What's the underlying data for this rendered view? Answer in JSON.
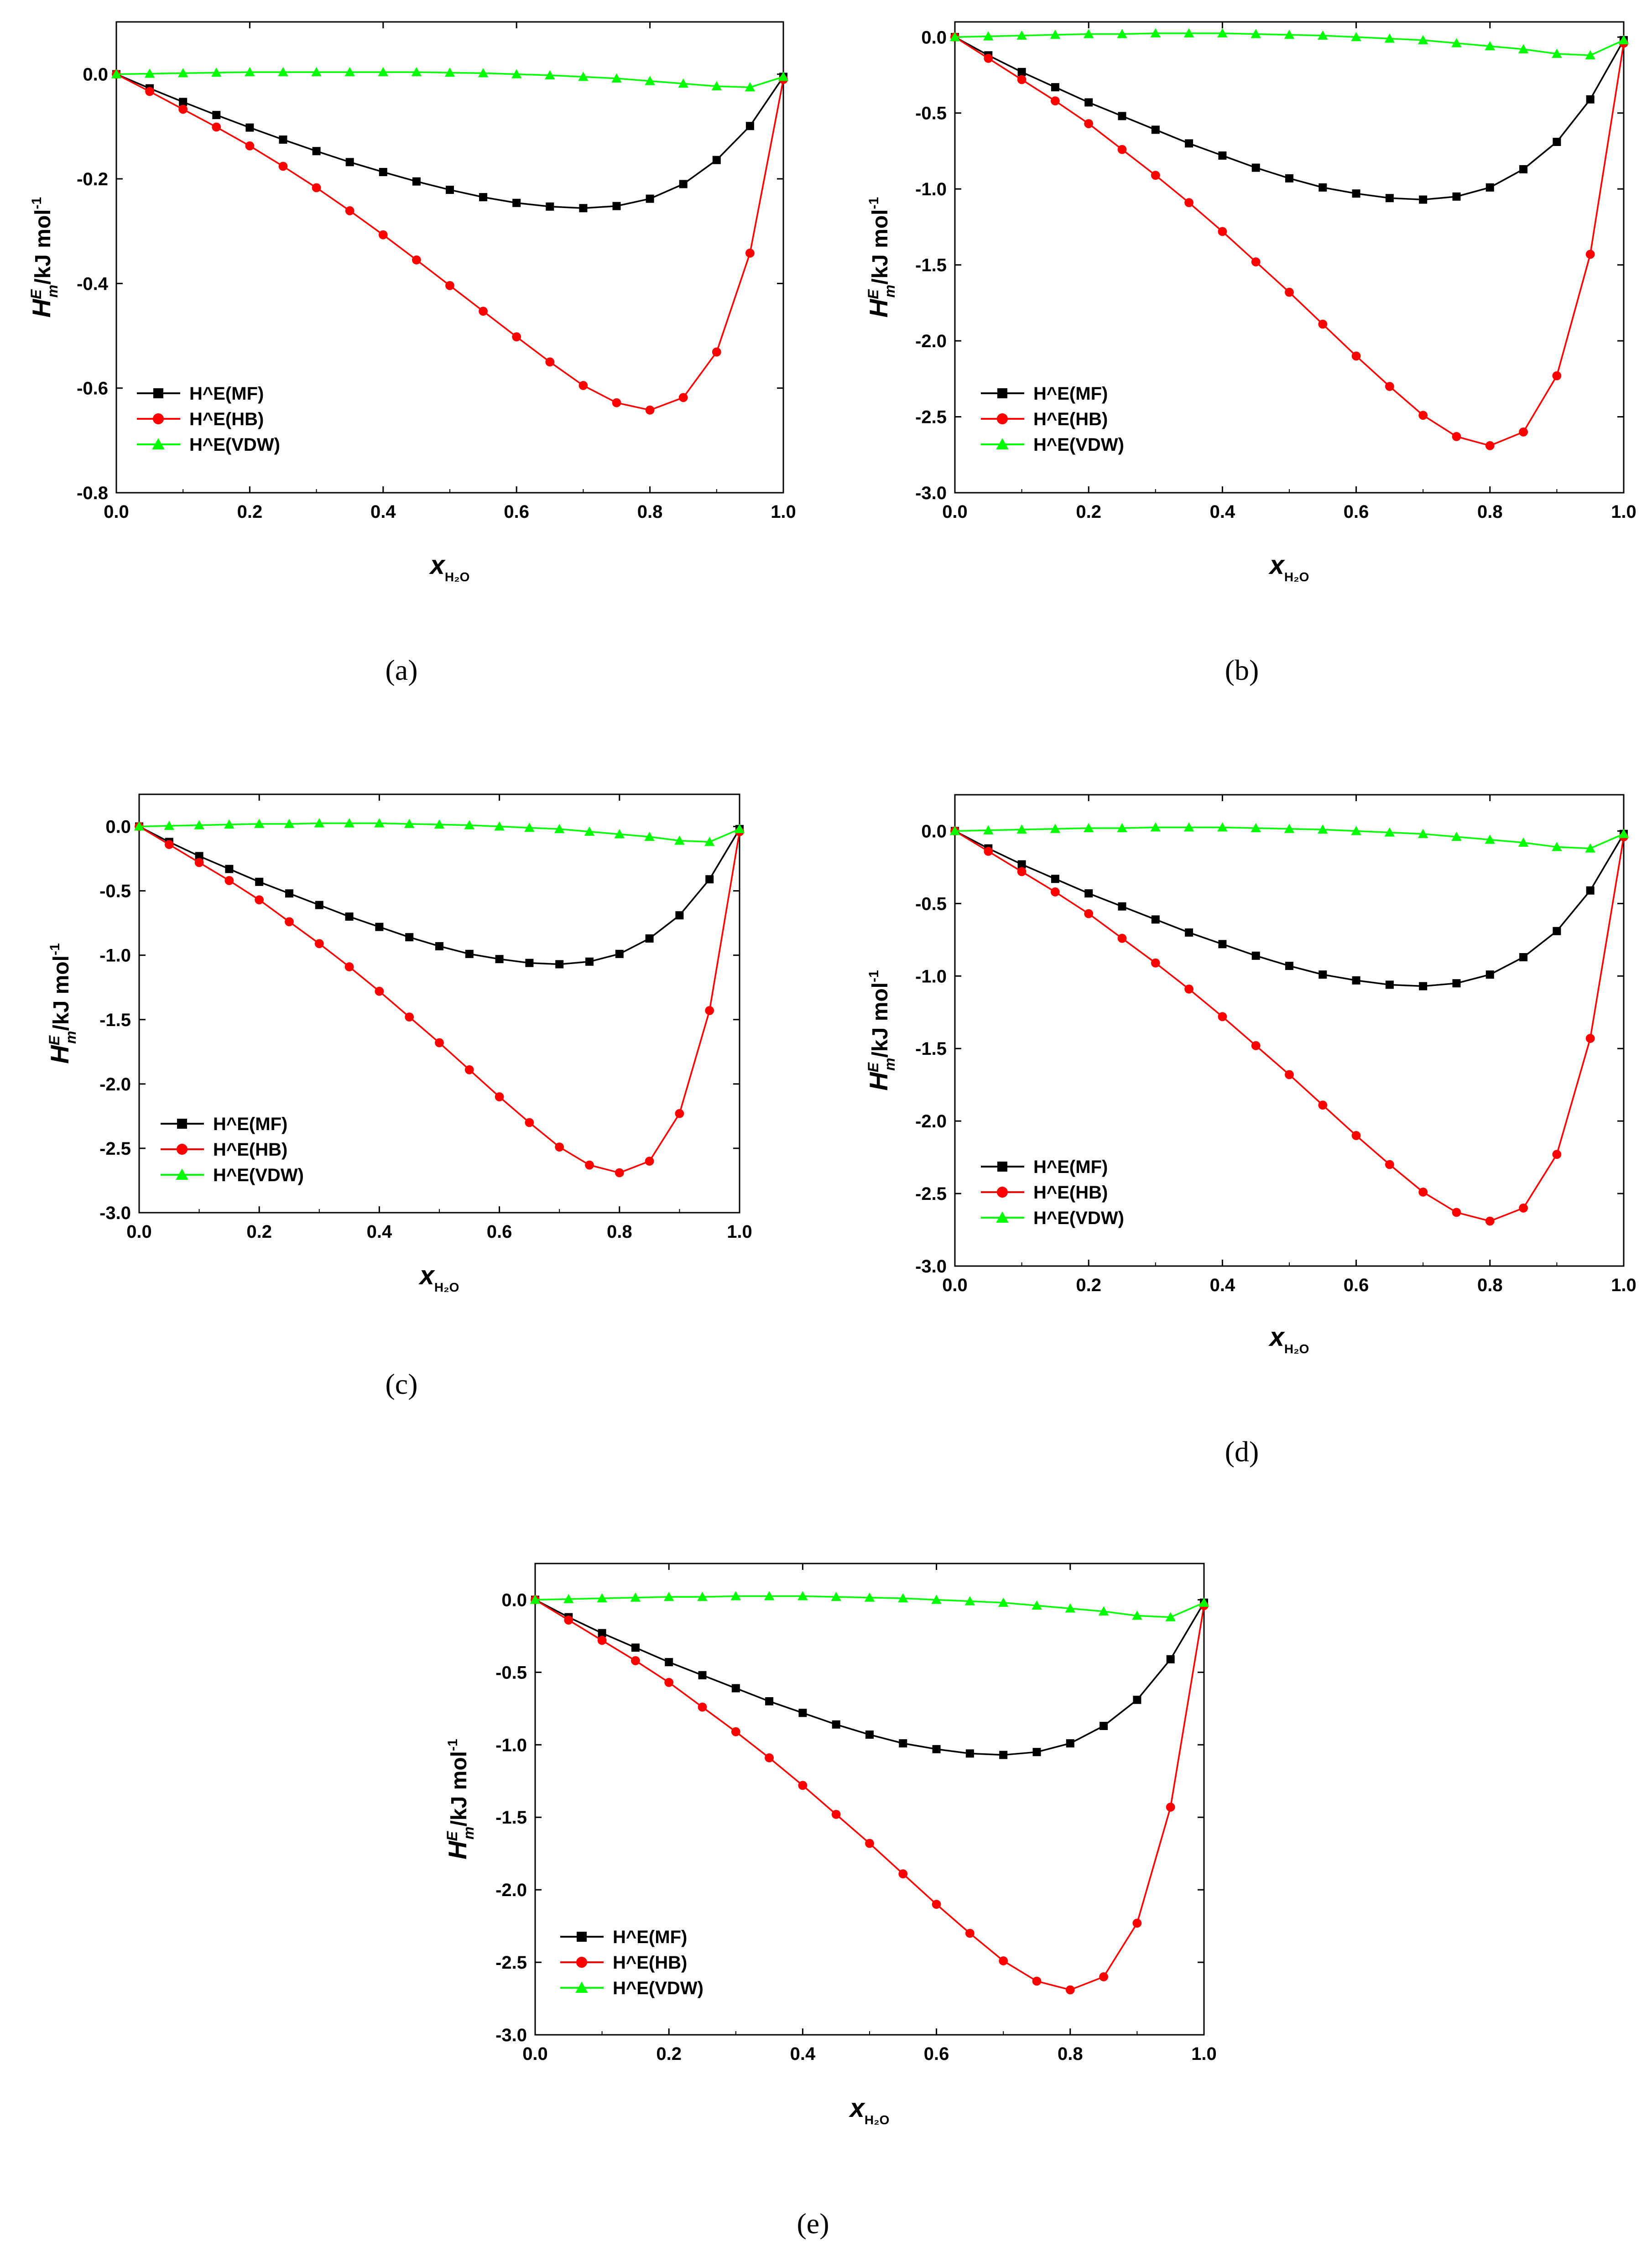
{
  "colors": {
    "MF": "#000000",
    "HB": "#ff0000",
    "VDW": "#00ff00"
  },
  "chart_data": [
    {
      "type": "line",
      "panel": "a",
      "caption": "(a)",
      "title": "",
      "xlabel": "x",
      "xlabel_sub": "H₂O",
      "ylabel": "H",
      "ylabel_sup": "E",
      "ylabel_sub": "m",
      "ylabel_unit": "/kJ mol",
      "ylabel_unit_sup": "-1",
      "xlim": [
        0.0,
        1.0
      ],
      "ylim": [
        -0.8,
        0.1
      ],
      "xticks": [
        "0.0",
        "0.2",
        "0.4",
        "0.6",
        "0.8",
        "1.0"
      ],
      "yticks": [
        "0.0",
        "-0.2",
        "-0.4",
        "-0.6",
        "-0.8"
      ],
      "ytick_values": [
        0.0,
        -0.2,
        -0.4,
        -0.6,
        -0.8
      ],
      "x": [
        0,
        0.05,
        0.1,
        0.15,
        0.2,
        0.25,
        0.3,
        0.35,
        0.4,
        0.45,
        0.5,
        0.55,
        0.6,
        0.65,
        0.7,
        0.75,
        0.8,
        0.85,
        0.9,
        0.95,
        1.0
      ],
      "series": [
        {
          "name": "H^E(MF)",
          "key": "MF",
          "marker": "square",
          "values": [
            0,
            -0.027,
            -0.053,
            -0.078,
            -0.102,
            -0.125,
            -0.147,
            -0.168,
            -0.187,
            -0.205,
            -0.221,
            -0.235,
            -0.246,
            -0.253,
            -0.256,
            -0.252,
            -0.238,
            -0.21,
            -0.164,
            -0.099,
            -0.005
          ]
        },
        {
          "name": "H^E(HB)",
          "key": "HB",
          "marker": "circle",
          "values": [
            0,
            -0.033,
            -0.067,
            -0.101,
            -0.137,
            -0.176,
            -0.217,
            -0.261,
            -0.307,
            -0.355,
            -0.404,
            -0.453,
            -0.502,
            -0.55,
            -0.595,
            -0.628,
            -0.642,
            -0.618,
            -0.531,
            -0.342,
            -0.01
          ]
        },
        {
          "name": "H^E(VDW)",
          "key": "VDW",
          "marker": "triangle",
          "values": [
            0,
            0.001,
            0.002,
            0.003,
            0.004,
            0.004,
            0.004,
            0.004,
            0.004,
            0.004,
            0.003,
            0.002,
            0.0,
            -0.002,
            -0.005,
            -0.008,
            -0.013,
            -0.018,
            -0.023,
            -0.025,
            -0.005
          ]
        }
      ]
    },
    {
      "type": "line",
      "panel": "b",
      "caption": "(b)",
      "title": "",
      "xlabel": "x",
      "xlabel_sub": "H₂O",
      "ylabel": "H",
      "ylabel_sup": "E",
      "ylabel_sub": "m",
      "ylabel_unit": "/kJ mol",
      "ylabel_unit_sup": "-1",
      "xlim": [
        0.0,
        1.0
      ],
      "ylim": [
        -3.0,
        0.1
      ],
      "xticks": [
        "0.0",
        "0.2",
        "0.4",
        "0.6",
        "0.8",
        "1.0"
      ],
      "yticks": [
        "0.0",
        "-0.5",
        "-1.0",
        "-1.5",
        "-2.0",
        "-2.5",
        "-3.0"
      ],
      "ytick_values": [
        0.0,
        -0.5,
        -1.0,
        -1.5,
        -2.0,
        -2.5,
        -3.0
      ],
      "x": [
        0,
        0.05,
        0.1,
        0.15,
        0.2,
        0.25,
        0.3,
        0.35,
        0.4,
        0.45,
        0.5,
        0.55,
        0.6,
        0.65,
        0.7,
        0.75,
        0.8,
        0.85,
        0.9,
        0.95,
        1.0
      ],
      "series": [
        {
          "name": "H^E(MF)",
          "key": "MF",
          "marker": "square",
          "values": [
            0,
            -0.12,
            -0.23,
            -0.33,
            -0.43,
            -0.52,
            -0.61,
            -0.7,
            -0.78,
            -0.86,
            -0.93,
            -0.99,
            -1.03,
            -1.06,
            -1.07,
            -1.05,
            -0.99,
            -0.87,
            -0.69,
            -0.41,
            -0.02
          ]
        },
        {
          "name": "H^E(HB)",
          "key": "HB",
          "marker": "circle",
          "values": [
            0,
            -0.14,
            -0.28,
            -0.42,
            -0.57,
            -0.74,
            -0.91,
            -1.09,
            -1.28,
            -1.48,
            -1.68,
            -1.89,
            -2.1,
            -2.3,
            -2.49,
            -2.63,
            -2.69,
            -2.6,
            -2.23,
            -1.43,
            -0.04
          ]
        },
        {
          "name": "H^E(VDW)",
          "key": "VDW",
          "marker": "triangle",
          "values": [
            0,
            0.005,
            0.01,
            0.015,
            0.02,
            0.02,
            0.025,
            0.025,
            0.025,
            0.02,
            0.015,
            0.01,
            0.0,
            -0.01,
            -0.02,
            -0.04,
            -0.06,
            -0.08,
            -0.11,
            -0.12,
            -0.02
          ]
        }
      ]
    },
    {
      "type": "line",
      "panel": "c",
      "caption": "(c)",
      "title": "",
      "xlabel": "x",
      "xlabel_sub": "H₂O",
      "ylabel": "H",
      "ylabel_sup": "E",
      "ylabel_sub": "m",
      "ylabel_unit": "/kJ mol",
      "ylabel_unit_sup": "-1",
      "xlim": [
        0.0,
        1.0
      ],
      "ylim": [
        -3.0,
        0.25
      ],
      "xticks": [
        "0.0",
        "0.2",
        "0.4",
        "0.6",
        "0.8",
        "1.0"
      ],
      "yticks": [
        "0.0",
        "-0.5",
        "-1.0",
        "-1.5",
        "-2.0",
        "-2.5",
        "-3.0"
      ],
      "ytick_values": [
        0.0,
        -0.5,
        -1.0,
        -1.5,
        -2.0,
        -2.5,
        -3.0
      ],
      "x": [
        0,
        0.05,
        0.1,
        0.15,
        0.2,
        0.25,
        0.3,
        0.35,
        0.4,
        0.45,
        0.5,
        0.55,
        0.6,
        0.65,
        0.7,
        0.75,
        0.8,
        0.85,
        0.9,
        0.95,
        1.0
      ],
      "series": [
        {
          "name": "H^E(MF)",
          "key": "MF",
          "marker": "square",
          "values": [
            0,
            -0.12,
            -0.23,
            -0.33,
            -0.43,
            -0.52,
            -0.61,
            -0.7,
            -0.78,
            -0.86,
            -0.93,
            -0.99,
            -1.03,
            -1.06,
            -1.07,
            -1.05,
            -0.99,
            -0.87,
            -0.69,
            -0.41,
            -0.02
          ]
        },
        {
          "name": "H^E(HB)",
          "key": "HB",
          "marker": "circle",
          "values": [
            0,
            -0.14,
            -0.28,
            -0.42,
            -0.57,
            -0.74,
            -0.91,
            -1.09,
            -1.28,
            -1.48,
            -1.68,
            -1.89,
            -2.1,
            -2.3,
            -2.49,
            -2.63,
            -2.69,
            -2.6,
            -2.23,
            -1.43,
            -0.04
          ]
        },
        {
          "name": "H^E(VDW)",
          "key": "VDW",
          "marker": "triangle",
          "values": [
            0,
            0.005,
            0.01,
            0.015,
            0.02,
            0.02,
            0.025,
            0.025,
            0.025,
            0.02,
            0.015,
            0.01,
            0.0,
            -0.01,
            -0.02,
            -0.04,
            -0.06,
            -0.08,
            -0.11,
            -0.12,
            -0.02
          ]
        }
      ]
    },
    {
      "type": "line",
      "panel": "d",
      "caption": "(d)",
      "title": "",
      "xlabel": "x",
      "xlabel_sub": "H₂O",
      "ylabel": "H",
      "ylabel_sup": "E",
      "ylabel_sub": "m",
      "ylabel_unit": "/kJ mol",
      "ylabel_unit_sup": "-1",
      "xlim": [
        0.0,
        1.0
      ],
      "ylim": [
        -3.0,
        0.25
      ],
      "xticks": [
        "0.0",
        "0.2",
        "0.4",
        "0.6",
        "0.8",
        "1.0"
      ],
      "yticks": [
        "0.0",
        "-0.5",
        "-1.0",
        "-1.5",
        "-2.0",
        "-2.5",
        "-3.0"
      ],
      "ytick_values": [
        0.0,
        -0.5,
        -1.0,
        -1.5,
        -2.0,
        -2.5,
        -3.0
      ],
      "x": [
        0,
        0.05,
        0.1,
        0.15,
        0.2,
        0.25,
        0.3,
        0.35,
        0.4,
        0.45,
        0.5,
        0.55,
        0.6,
        0.65,
        0.7,
        0.75,
        0.8,
        0.85,
        0.9,
        0.95,
        1.0
      ],
      "series": [
        {
          "name": "H^E(MF)",
          "key": "MF",
          "marker": "square",
          "values": [
            0,
            -0.12,
            -0.23,
            -0.33,
            -0.43,
            -0.52,
            -0.61,
            -0.7,
            -0.78,
            -0.86,
            -0.93,
            -0.99,
            -1.03,
            -1.06,
            -1.07,
            -1.05,
            -0.99,
            -0.87,
            -0.69,
            -0.41,
            -0.02
          ]
        },
        {
          "name": "H^E(HB)",
          "key": "HB",
          "marker": "circle",
          "values": [
            0,
            -0.14,
            -0.28,
            -0.42,
            -0.57,
            -0.74,
            -0.91,
            -1.09,
            -1.28,
            -1.48,
            -1.68,
            -1.89,
            -2.1,
            -2.3,
            -2.49,
            -2.63,
            -2.69,
            -2.6,
            -2.23,
            -1.43,
            -0.04
          ]
        },
        {
          "name": "H^E(VDW)",
          "key": "VDW",
          "marker": "triangle",
          "values": [
            0,
            0.005,
            0.01,
            0.015,
            0.02,
            0.02,
            0.025,
            0.025,
            0.025,
            0.02,
            0.015,
            0.01,
            0.0,
            -0.01,
            -0.02,
            -0.04,
            -0.06,
            -0.08,
            -0.11,
            -0.12,
            -0.02
          ]
        }
      ]
    },
    {
      "type": "line",
      "panel": "e",
      "caption": "(e)",
      "title": "",
      "xlabel": "x",
      "xlabel_sub": "H₂O",
      "ylabel": "H",
      "ylabel_sup": "E",
      "ylabel_sub": "m",
      "ylabel_unit": "/kJ mol",
      "ylabel_unit_sup": "-1",
      "xlim": [
        0.0,
        1.0
      ],
      "ylim": [
        -3.0,
        0.25
      ],
      "xticks": [
        "0.0",
        "0.2",
        "0.4",
        "0.6",
        "0.8",
        "1.0"
      ],
      "yticks": [
        "0.0",
        "-0.5",
        "-1.0",
        "-1.5",
        "-2.0",
        "-2.5",
        "-3.0"
      ],
      "ytick_values": [
        0.0,
        -0.5,
        -1.0,
        -1.5,
        -2.0,
        -2.5,
        -3.0
      ],
      "x": [
        0,
        0.05,
        0.1,
        0.15,
        0.2,
        0.25,
        0.3,
        0.35,
        0.4,
        0.45,
        0.5,
        0.55,
        0.6,
        0.65,
        0.7,
        0.75,
        0.8,
        0.85,
        0.9,
        0.95,
        1.0
      ],
      "series": [
        {
          "name": "H^E(MF)",
          "key": "MF",
          "marker": "square",
          "values": [
            0,
            -0.12,
            -0.23,
            -0.33,
            -0.43,
            -0.52,
            -0.61,
            -0.7,
            -0.78,
            -0.86,
            -0.93,
            -0.99,
            -1.03,
            -1.06,
            -1.07,
            -1.05,
            -0.99,
            -0.87,
            -0.69,
            -0.41,
            -0.02
          ]
        },
        {
          "name": "H^E(HB)",
          "key": "HB",
          "marker": "circle",
          "values": [
            0,
            -0.14,
            -0.28,
            -0.42,
            -0.57,
            -0.74,
            -0.91,
            -1.09,
            -1.28,
            -1.48,
            -1.68,
            -1.89,
            -2.1,
            -2.3,
            -2.49,
            -2.63,
            -2.69,
            -2.6,
            -2.23,
            -1.43,
            -0.04
          ]
        },
        {
          "name": "H^E(VDW)",
          "key": "VDW",
          "marker": "triangle",
          "values": [
            0,
            0.005,
            0.01,
            0.015,
            0.02,
            0.02,
            0.025,
            0.025,
            0.025,
            0.02,
            0.015,
            0.01,
            0.0,
            -0.01,
            -0.02,
            -0.04,
            -0.06,
            -0.08,
            -0.11,
            -0.12,
            -0.02
          ]
        }
      ]
    }
  ]
}
